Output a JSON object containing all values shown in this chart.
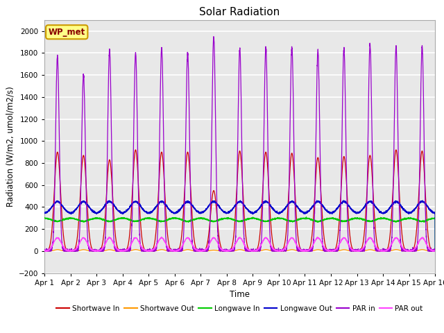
{
  "title": "Solar Radiation",
  "ylabel": "Radiation (W/m2, umol/m2/s)",
  "xlabel": "Time",
  "xlim": [
    0,
    15
  ],
  "ylim": [
    -200,
    2100
  ],
  "yticks": [
    -200,
    0,
    200,
    400,
    600,
    800,
    1000,
    1200,
    1400,
    1600,
    1800,
    2000
  ],
  "xtick_labels": [
    "Apr 1",
    "Apr 2",
    "Apr 3",
    "Apr 4",
    "Apr 5",
    "Apr 6",
    "Apr 7",
    "Apr 8",
    "Apr 9",
    "Apr 10",
    "Apr 11",
    "Apr 12",
    "Apr 13",
    "Apr 14",
    "Apr 15",
    "Apr 16"
  ],
  "station_label": "WP_met",
  "bg_color": "#e8e8e8",
  "grid_color": "#ffffff",
  "series": {
    "shortwave_in": {
      "color": "#cc0000",
      "label": "Shortwave In"
    },
    "shortwave_out": {
      "color": "#ff9900",
      "label": "Shortwave Out"
    },
    "longwave_in": {
      "color": "#00cc00",
      "label": "Longwave In"
    },
    "longwave_out": {
      "color": "#0000cc",
      "label": "Longwave Out"
    },
    "par_in": {
      "color": "#9900cc",
      "label": "PAR in"
    },
    "par_out": {
      "color": "#ff44ff",
      "label": "PAR out"
    }
  },
  "sw_in_peaks": [
    900,
    870,
    830,
    920,
    900,
    900,
    550,
    910,
    900,
    890,
    850,
    860,
    870,
    920,
    910
  ],
  "par_in_peaks": [
    1770,
    1600,
    1830,
    1800,
    1850,
    1800,
    1950,
    1840,
    1850,
    1860,
    1820,
    1840,
    1870,
    1860,
    1860
  ],
  "lw_in_base": 300,
  "lw_in_amp": 30,
  "lw_out_base": 340,
  "lw_out_amp": 110,
  "par_out_peak": 120,
  "n_days": 15,
  "points_per_day": 288,
  "line_width": 0.9
}
